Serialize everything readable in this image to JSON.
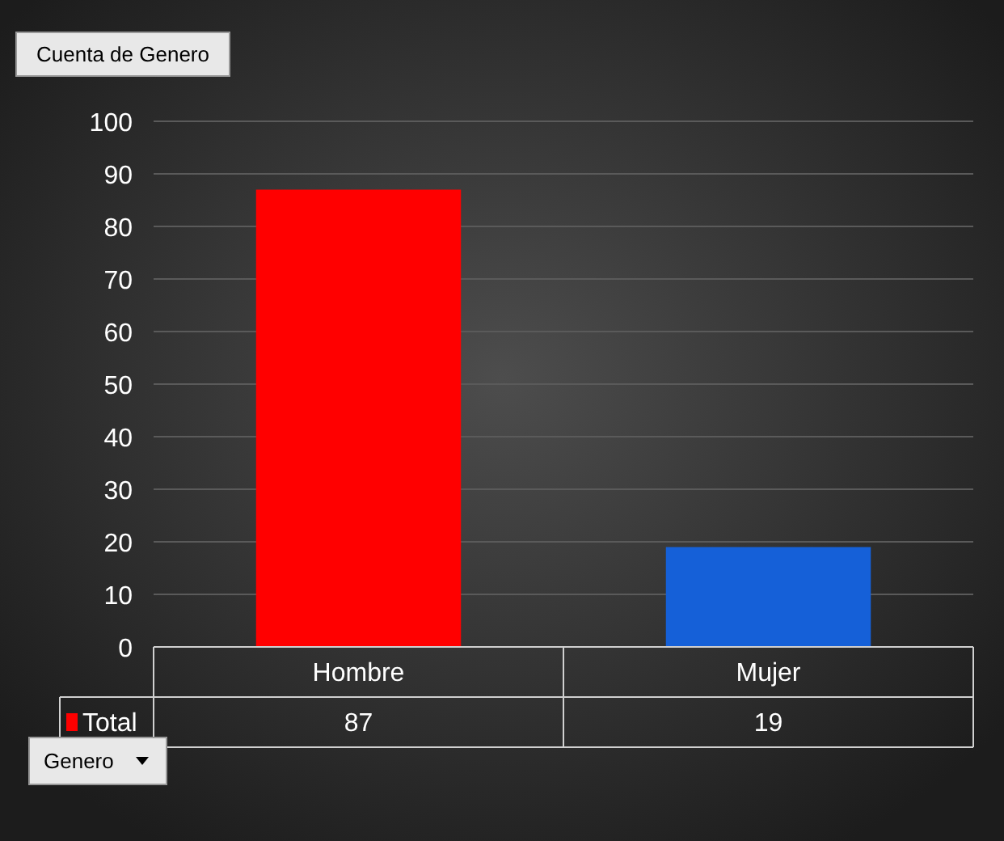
{
  "chart_data": {
    "type": "bar",
    "title": "Cuenta de Genero",
    "xlabel": "Genero",
    "categories": [
      "Hombre",
      "Mujer"
    ],
    "series": [
      {
        "name": "Total",
        "colors": [
          "#ff0000",
          "#1560d8"
        ],
        "values": [
          87,
          19
        ]
      }
    ],
    "ylim": [
      0,
      100
    ],
    "yticks": [
      0,
      10,
      20,
      30,
      40,
      50,
      60,
      70,
      80,
      90,
      100
    ],
    "grid": "y",
    "legend": "bottom",
    "data_labels": true
  }
}
